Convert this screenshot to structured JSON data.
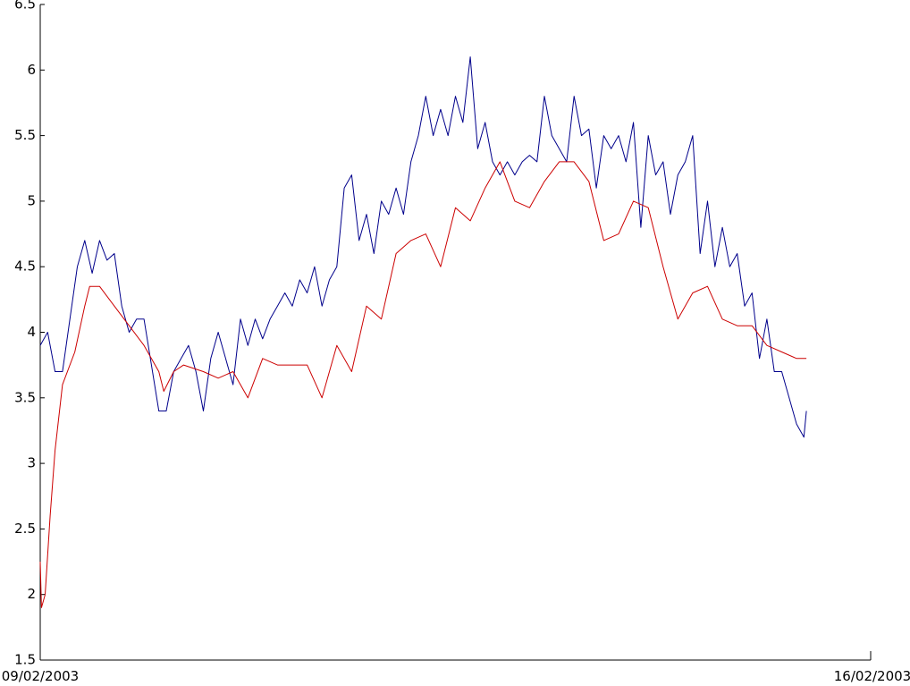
{
  "chart_data": {
    "type": "line",
    "title": "",
    "xlabel": "",
    "ylabel": "",
    "xlim": [
      "09/02/2003",
      "16/02/2003"
    ],
    "ylim": [
      1.5,
      6.5
    ],
    "x_tick_labels": [
      "09/02/2003",
      "16/02/2003"
    ],
    "y_ticks": [
      1.5,
      2,
      2.5,
      3,
      3.5,
      4,
      4.5,
      5,
      5.5,
      6,
      6.5
    ],
    "y_tick_labels": [
      "1.5",
      "2",
      "2.5",
      "3",
      "3.5",
      "4",
      "4.5",
      "5",
      "5.5",
      "6",
      "6.5"
    ],
    "grid": false,
    "legend": "none",
    "series": [
      {
        "color": "#00008B",
        "points": [
          [
            "2003-02-09 00:00",
            3.9
          ],
          [
            "2003-02-09 01:30",
            4.0
          ],
          [
            "2003-02-09 03:00",
            3.7
          ],
          [
            "2003-02-09 04:30",
            3.7
          ],
          [
            "2003-02-09 06:00",
            4.1
          ],
          [
            "2003-02-09 07:30",
            4.5
          ],
          [
            "2003-02-09 09:00",
            4.7
          ],
          [
            "2003-02-09 10:30",
            4.45
          ],
          [
            "2003-02-09 12:00",
            4.7
          ],
          [
            "2003-02-09 13:30",
            4.55
          ],
          [
            "2003-02-09 15:00",
            4.6
          ],
          [
            "2003-02-09 16:30",
            4.2
          ],
          [
            "2003-02-09 18:00",
            4.0
          ],
          [
            "2003-02-09 19:30",
            4.1
          ],
          [
            "2003-02-09 21:00",
            4.1
          ],
          [
            "2003-02-09 22:30",
            3.75
          ],
          [
            "2003-02-10 00:00",
            3.4
          ],
          [
            "2003-02-10 01:30",
            3.4
          ],
          [
            "2003-02-10 03:00",
            3.7
          ],
          [
            "2003-02-10 04:30",
            3.8
          ],
          [
            "2003-02-10 06:00",
            3.9
          ],
          [
            "2003-02-10 07:30",
            3.7
          ],
          [
            "2003-02-10 09:00",
            3.4
          ],
          [
            "2003-02-10 10:30",
            3.8
          ],
          [
            "2003-02-10 12:00",
            4.0
          ],
          [
            "2003-02-10 13:30",
            3.8
          ],
          [
            "2003-02-10 15:00",
            3.6
          ],
          [
            "2003-02-10 16:30",
            4.1
          ],
          [
            "2003-02-10 18:00",
            3.9
          ],
          [
            "2003-02-10 19:30",
            4.1
          ],
          [
            "2003-02-10 21:00",
            3.95
          ],
          [
            "2003-02-10 22:30",
            4.1
          ],
          [
            "2003-02-11 00:00",
            4.2
          ],
          [
            "2003-02-11 01:30",
            4.3
          ],
          [
            "2003-02-11 03:00",
            4.2
          ],
          [
            "2003-02-11 04:30",
            4.4
          ],
          [
            "2003-02-11 06:00",
            4.3
          ],
          [
            "2003-02-11 07:30",
            4.5
          ],
          [
            "2003-02-11 09:00",
            4.2
          ],
          [
            "2003-02-11 10:30",
            4.4
          ],
          [
            "2003-02-11 12:00",
            4.5
          ],
          [
            "2003-02-11 13:30",
            5.1
          ],
          [
            "2003-02-11 15:00",
            5.2
          ],
          [
            "2003-02-11 16:30",
            4.7
          ],
          [
            "2003-02-11 18:00",
            4.9
          ],
          [
            "2003-02-11 19:30",
            4.6
          ],
          [
            "2003-02-11 21:00",
            5.0
          ],
          [
            "2003-02-11 22:30",
            4.9
          ],
          [
            "2003-02-12 00:00",
            5.1
          ],
          [
            "2003-02-12 01:30",
            4.9
          ],
          [
            "2003-02-12 03:00",
            5.3
          ],
          [
            "2003-02-12 04:30",
            5.5
          ],
          [
            "2003-02-12 06:00",
            5.8
          ],
          [
            "2003-02-12 07:30",
            5.5
          ],
          [
            "2003-02-12 09:00",
            5.7
          ],
          [
            "2003-02-12 10:30",
            5.5
          ],
          [
            "2003-02-12 12:00",
            5.8
          ],
          [
            "2003-02-12 13:30",
            5.6
          ],
          [
            "2003-02-12 15:00",
            6.1
          ],
          [
            "2003-02-12 16:30",
            5.4
          ],
          [
            "2003-02-12 18:00",
            5.6
          ],
          [
            "2003-02-12 19:30",
            5.3
          ],
          [
            "2003-02-12 21:00",
            5.2
          ],
          [
            "2003-02-12 22:30",
            5.3
          ],
          [
            "2003-02-13 00:00",
            5.2
          ],
          [
            "2003-02-13 01:30",
            5.3
          ],
          [
            "2003-02-13 03:00",
            5.35
          ],
          [
            "2003-02-13 04:30",
            5.3
          ],
          [
            "2003-02-13 06:00",
            5.8
          ],
          [
            "2003-02-13 07:30",
            5.5
          ],
          [
            "2003-02-13 09:00",
            5.4
          ],
          [
            "2003-02-13 10:30",
            5.3
          ],
          [
            "2003-02-13 12:00",
            5.8
          ],
          [
            "2003-02-13 13:30",
            5.5
          ],
          [
            "2003-02-13 15:00",
            5.55
          ],
          [
            "2003-02-13 16:30",
            5.1
          ],
          [
            "2003-02-13 18:00",
            5.5
          ],
          [
            "2003-02-13 19:30",
            5.4
          ],
          [
            "2003-02-13 21:00",
            5.5
          ],
          [
            "2003-02-13 22:30",
            5.3
          ],
          [
            "2003-02-14 00:00",
            5.6
          ],
          [
            "2003-02-14 01:30",
            4.8
          ],
          [
            "2003-02-14 03:00",
            5.5
          ],
          [
            "2003-02-14 04:30",
            5.2
          ],
          [
            "2003-02-14 06:00",
            5.3
          ],
          [
            "2003-02-14 07:30",
            4.9
          ],
          [
            "2003-02-14 09:00",
            5.2
          ],
          [
            "2003-02-14 10:30",
            5.3
          ],
          [
            "2003-02-14 12:00",
            5.5
          ],
          [
            "2003-02-14 13:30",
            4.6
          ],
          [
            "2003-02-14 15:00",
            5.0
          ],
          [
            "2003-02-14 16:30",
            4.5
          ],
          [
            "2003-02-14 18:00",
            4.8
          ],
          [
            "2003-02-14 19:30",
            4.5
          ],
          [
            "2003-02-14 21:00",
            4.6
          ],
          [
            "2003-02-14 22:30",
            4.2
          ],
          [
            "2003-02-15 00:00",
            4.3
          ],
          [
            "2003-02-15 01:30",
            3.8
          ],
          [
            "2003-02-15 03:00",
            4.1
          ],
          [
            "2003-02-15 04:30",
            3.7
          ],
          [
            "2003-02-15 06:00",
            3.7
          ],
          [
            "2003-02-15 07:30",
            3.5
          ],
          [
            "2003-02-15 09:00",
            3.3
          ],
          [
            "2003-02-15 10:30",
            3.2
          ],
          [
            "2003-02-15 11:00",
            3.4
          ]
        ]
      },
      {
        "color": "#CC0000",
        "points": [
          [
            "2003-02-09 00:00",
            2.25
          ],
          [
            "2003-02-09 00:15",
            1.9
          ],
          [
            "2003-02-09 01:00",
            2.0
          ],
          [
            "2003-02-09 02:00",
            2.6
          ],
          [
            "2003-02-09 03:00",
            3.1
          ],
          [
            "2003-02-09 04:30",
            3.6
          ],
          [
            "2003-02-09 07:00",
            3.85
          ],
          [
            "2003-02-09 09:00",
            4.2
          ],
          [
            "2003-02-09 10:00",
            4.35
          ],
          [
            "2003-02-09 12:00",
            4.35
          ],
          [
            "2003-02-09 15:00",
            4.2
          ],
          [
            "2003-02-09 18:00",
            4.05
          ],
          [
            "2003-02-09 21:00",
            3.9
          ],
          [
            "2003-02-10 00:00",
            3.7
          ],
          [
            "2003-02-10 01:00",
            3.55
          ],
          [
            "2003-02-10 03:00",
            3.7
          ],
          [
            "2003-02-10 05:00",
            3.75
          ],
          [
            "2003-02-10 09:00",
            3.7
          ],
          [
            "2003-02-10 12:00",
            3.65
          ],
          [
            "2003-02-10 15:00",
            3.7
          ],
          [
            "2003-02-10 18:00",
            3.5
          ],
          [
            "2003-02-10 21:00",
            3.8
          ],
          [
            "2003-02-11 00:00",
            3.75
          ],
          [
            "2003-02-11 03:00",
            3.75
          ],
          [
            "2003-02-11 06:00",
            3.75
          ],
          [
            "2003-02-11 09:00",
            3.5
          ],
          [
            "2003-02-11 12:00",
            3.9
          ],
          [
            "2003-02-11 15:00",
            3.7
          ],
          [
            "2003-02-11 18:00",
            4.2
          ],
          [
            "2003-02-11 21:00",
            4.1
          ],
          [
            "2003-02-12 00:00",
            4.6
          ],
          [
            "2003-02-12 03:00",
            4.7
          ],
          [
            "2003-02-12 06:00",
            4.75
          ],
          [
            "2003-02-12 09:00",
            4.5
          ],
          [
            "2003-02-12 12:00",
            4.95
          ],
          [
            "2003-02-12 15:00",
            4.85
          ],
          [
            "2003-02-12 18:00",
            5.1
          ],
          [
            "2003-02-12 21:00",
            5.3
          ],
          [
            "2003-02-13 00:00",
            5.0
          ],
          [
            "2003-02-13 03:00",
            4.95
          ],
          [
            "2003-02-13 06:00",
            5.15
          ],
          [
            "2003-02-13 09:00",
            5.3
          ],
          [
            "2003-02-13 12:00",
            5.3
          ],
          [
            "2003-02-13 15:00",
            5.15
          ],
          [
            "2003-02-13 18:00",
            4.7
          ],
          [
            "2003-02-13 21:00",
            4.75
          ],
          [
            "2003-02-14 00:00",
            5.0
          ],
          [
            "2003-02-14 03:00",
            4.95
          ],
          [
            "2003-02-14 06:00",
            4.5
          ],
          [
            "2003-02-14 09:00",
            4.1
          ],
          [
            "2003-02-14 12:00",
            4.3
          ],
          [
            "2003-02-14 15:00",
            4.35
          ],
          [
            "2003-02-14 18:00",
            4.1
          ],
          [
            "2003-02-14 21:00",
            4.05
          ],
          [
            "2003-02-15 00:00",
            4.05
          ],
          [
            "2003-02-15 03:00",
            3.9
          ],
          [
            "2003-02-15 06:00",
            3.85
          ],
          [
            "2003-02-15 09:00",
            3.8
          ],
          [
            "2003-02-15 11:00",
            3.8
          ]
        ]
      }
    ]
  }
}
